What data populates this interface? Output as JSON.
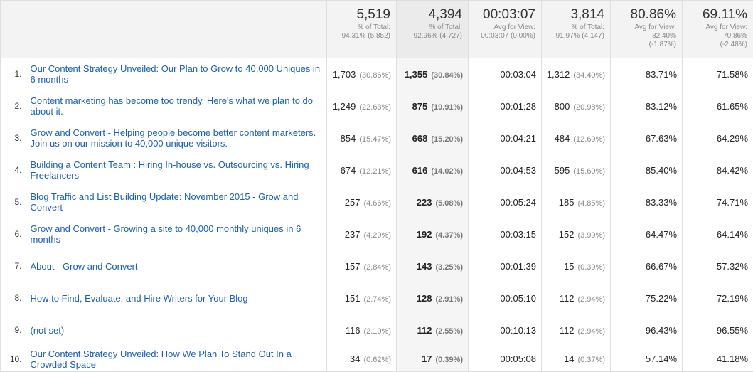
{
  "header": {
    "columns": [
      {
        "total": "5,519",
        "sub1": "% of Total:",
        "sub2": "94.31% (5,852)",
        "sub3": ""
      },
      {
        "total": "4,394",
        "sub1": "% of Total:",
        "sub2": "92.96% (4,727)",
        "sub3": ""
      },
      {
        "total": "00:03:07",
        "sub1": "Avg for View:",
        "sub2": "00:03:07 (0.00%)",
        "sub3": ""
      },
      {
        "total": "3,814",
        "sub1": "% of Total:",
        "sub2": "91.97% (4,147)",
        "sub3": ""
      },
      {
        "total": "80.86%",
        "sub1": "Avg for View:",
        "sub2": "82.40%",
        "sub3": "(-1.87%)"
      },
      {
        "total": "69.11%",
        "sub1": "Avg for View:",
        "sub2": "70.86%",
        "sub3": "(-2.48%)"
      }
    ]
  },
  "rows": [
    {
      "idx": "1.",
      "page": "Our Content Strategy Unveiled: Our Plan to Grow to 40,000 Uniques in 6 months",
      "c1v": "1,703",
      "c1p": "(30.86%)",
      "c2v": "1,355",
      "c2p": "(30.84%)",
      "c3": "00:03:04",
      "c4v": "1,312",
      "c4p": "(34.40%)",
      "c5": "83.71%",
      "c6": "71.58%"
    },
    {
      "idx": "2.",
      "page": "Content marketing has become too trendy. Here's what we plan to do about it.",
      "c1v": "1,249",
      "c1p": "(22.63%)",
      "c2v": "875",
      "c2p": "(19.91%)",
      "c3": "00:01:28",
      "c4v": "800",
      "c4p": "(20.98%)",
      "c5": "83.12%",
      "c6": "61.65%"
    },
    {
      "idx": "3.",
      "page": "Grow and Convert - Helping people become better content marketers. Join us on our mission to 40,000 unique visitors.",
      "c1v": "854",
      "c1p": "(15.47%)",
      "c2v": "668",
      "c2p": "(15.20%)",
      "c3": "00:04:21",
      "c4v": "484",
      "c4p": "(12.69%)",
      "c5": "67.63%",
      "c6": "64.29%"
    },
    {
      "idx": "4.",
      "page": "Building a Content Team : Hiring In-house vs. Outsourcing vs. Hiring Freelancers",
      "c1v": "674",
      "c1p": "(12.21%)",
      "c2v": "616",
      "c2p": "(14.02%)",
      "c3": "00:04:53",
      "c4v": "595",
      "c4p": "(15.60%)",
      "c5": "85.40%",
      "c6": "84.42%"
    },
    {
      "idx": "5.",
      "page": "Blog Traffic and List Building Update: November 2015 - Grow and Convert",
      "c1v": "257",
      "c1p": "(4.66%)",
      "c2v": "223",
      "c2p": "(5.08%)",
      "c3": "00:05:24",
      "c4v": "185",
      "c4p": "(4.85%)",
      "c5": "83.33%",
      "c6": "74.71%"
    },
    {
      "idx": "6.",
      "page": "Grow and Convert - Growing a site to 40,000 monthly uniques in 6 months",
      "c1v": "237",
      "c1p": "(4.29%)",
      "c2v": "192",
      "c2p": "(4.37%)",
      "c3": "00:03:15",
      "c4v": "152",
      "c4p": "(3.99%)",
      "c5": "64.47%",
      "c6": "64.14%"
    },
    {
      "idx": "7.",
      "page": "About - Grow and Convert",
      "c1v": "157",
      "c1p": "(2.84%)",
      "c2v": "143",
      "c2p": "(3.25%)",
      "c3": "00:01:39",
      "c4v": "15",
      "c4p": "(0.39%)",
      "c5": "66.67%",
      "c6": "57.32%"
    },
    {
      "idx": "8.",
      "page": "How to Find, Evaluate, and Hire Writers for Your Blog",
      "c1v": "151",
      "c1p": "(2.74%)",
      "c2v": "128",
      "c2p": "(2.91%)",
      "c3": "00:05:10",
      "c4v": "112",
      "c4p": "(2.94%)",
      "c5": "75.22%",
      "c6": "72.19%"
    },
    {
      "idx": "9.",
      "page": "(not set)",
      "c1v": "116",
      "c1p": "(2.10%)",
      "c2v": "112",
      "c2p": "(2.55%)",
      "c3": "00:10:13",
      "c4v": "112",
      "c4p": "(2.94%)",
      "c5": "96.43%",
      "c6": "96.55%"
    },
    {
      "idx": "10.",
      "page": "Our Content Strategy Unveiled: How We Plan To Stand Out In a Crowded Space",
      "c1v": "34",
      "c1p": "(0.62%)",
      "c2v": "17",
      "c2p": "(0.39%)",
      "c3": "00:05:08",
      "c4v": "14",
      "c4p": "(0.37%)",
      "c5": "57.14%",
      "c6": "41.18%"
    }
  ],
  "colors": {
    "link": "#1a5fb4",
    "header_bg": "#f3f3f3",
    "sorted_col_bg": "#f5f5f5",
    "border": "#dfdfdf"
  }
}
